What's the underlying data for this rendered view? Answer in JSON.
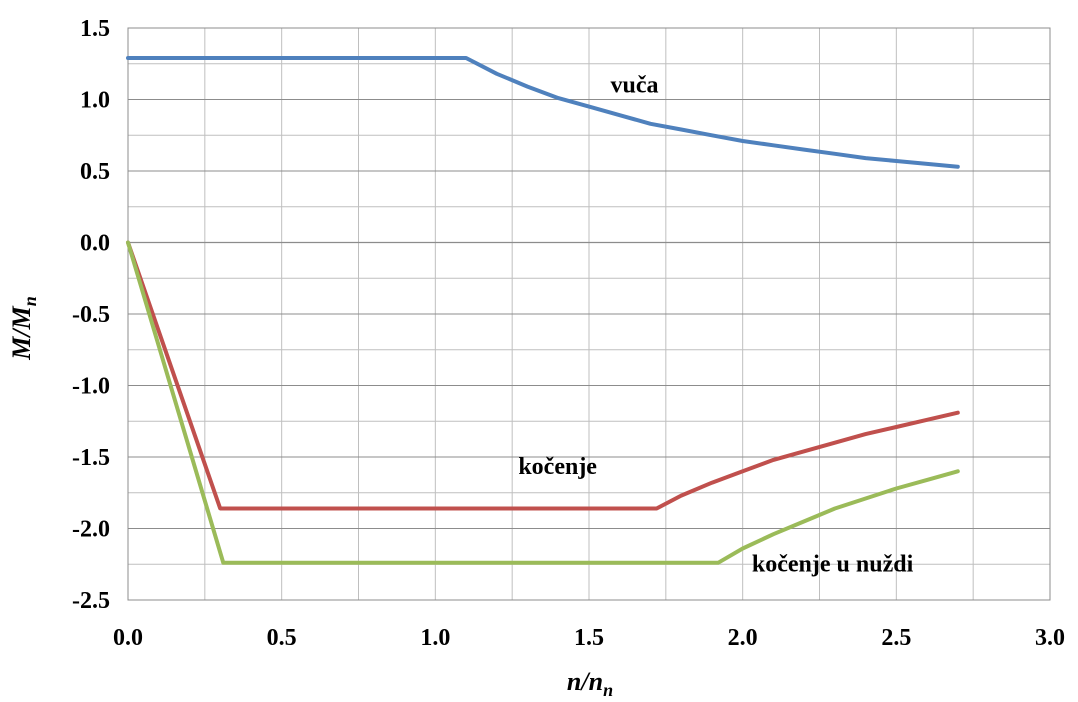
{
  "chart_data": {
    "type": "line",
    "title": "",
    "xlabel": "n/n",
    "xlabel_sub": "n",
    "ylabel": "M/M",
    "ylabel_sub": "n",
    "xlim": [
      0,
      3
    ],
    "ylim": [
      -2.5,
      1.5
    ],
    "xticks": [
      "0.0",
      "0.5",
      "1.0",
      "1.5",
      "2.0",
      "2.5",
      "3.0"
    ],
    "yticks": [
      "1.5",
      "1.0",
      "0.5",
      "0.0",
      "-0.5",
      "-1.0",
      "-1.5",
      "-2.0",
      "-2.5"
    ],
    "grid": true,
    "legend": "none",
    "series": [
      {
        "name": "vuča",
        "color": "#4f81bd",
        "points": [
          [
            0,
            1.29
          ],
          [
            1.1,
            1.29
          ],
          [
            1.2,
            1.18
          ],
          [
            1.3,
            1.09
          ],
          [
            1.4,
            1.01
          ],
          [
            1.5,
            0.95
          ],
          [
            1.6,
            0.89
          ],
          [
            1.7,
            0.83
          ],
          [
            1.8,
            0.79
          ],
          [
            1.9,
            0.75
          ],
          [
            2.0,
            0.71
          ],
          [
            2.1,
            0.68
          ],
          [
            2.2,
            0.65
          ],
          [
            2.3,
            0.62
          ],
          [
            2.4,
            0.59
          ],
          [
            2.5,
            0.57
          ],
          [
            2.6,
            0.55
          ],
          [
            2.7,
            0.53
          ]
        ]
      },
      {
        "name": "kočenje",
        "color": "#c0504d",
        "points": [
          [
            0,
            0
          ],
          [
            0.3,
            -1.86
          ],
          [
            1.72,
            -1.86
          ],
          [
            1.8,
            -1.77
          ],
          [
            1.9,
            -1.68
          ],
          [
            2.0,
            -1.6
          ],
          [
            2.1,
            -1.52
          ],
          [
            2.2,
            -1.46
          ],
          [
            2.3,
            -1.4
          ],
          [
            2.4,
            -1.34
          ],
          [
            2.5,
            -1.29
          ],
          [
            2.6,
            -1.24
          ],
          [
            2.7,
            -1.19
          ]
        ]
      },
      {
        "name": "kočenje u nuždi",
        "color": "#9bbb59",
        "points": [
          [
            0,
            0
          ],
          [
            0.31,
            -2.24
          ],
          [
            1.92,
            -2.24
          ],
          [
            2.0,
            -2.14
          ],
          [
            2.1,
            -2.04
          ],
          [
            2.2,
            -1.95
          ],
          [
            2.3,
            -1.86
          ],
          [
            2.4,
            -1.79
          ],
          [
            2.5,
            -1.72
          ],
          [
            2.6,
            -1.66
          ],
          [
            2.7,
            -1.6
          ]
        ]
      }
    ]
  }
}
